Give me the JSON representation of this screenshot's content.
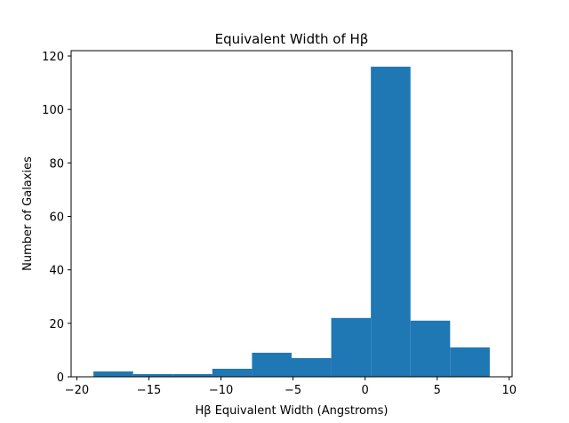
{
  "chart_data": {
    "type": "bar",
    "title": "Equivalent Width of Hβ",
    "xlabel": "Hβ Equivalent Width (Angstroms)",
    "ylabel": "Number of Galaxies",
    "bin_edges": [
      -18.85,
      -16.1,
      -13.35,
      -10.6,
      -7.85,
      -5.1,
      -2.35,
      0.4,
      3.15,
      5.9,
      8.65
    ],
    "values": [
      2,
      1,
      1,
      3,
      9,
      7,
      22,
      116,
      21,
      11
    ],
    "xlim": [
      -20.4,
      10.2
    ],
    "ylim": [
      0,
      122
    ],
    "xticks": [
      -20,
      -15,
      -10,
      -5,
      0,
      5,
      10
    ],
    "xtick_labels": [
      "−20",
      "−15",
      "−10",
      "−5",
      "0",
      "5",
      "10"
    ],
    "yticks": [
      0,
      20,
      40,
      60,
      80,
      100,
      120
    ],
    "ytick_labels": [
      "0",
      "20",
      "40",
      "60",
      "80",
      "100",
      "120"
    ],
    "bar_color": "#1f77b4",
    "grid": false,
    "legend": "none"
  }
}
